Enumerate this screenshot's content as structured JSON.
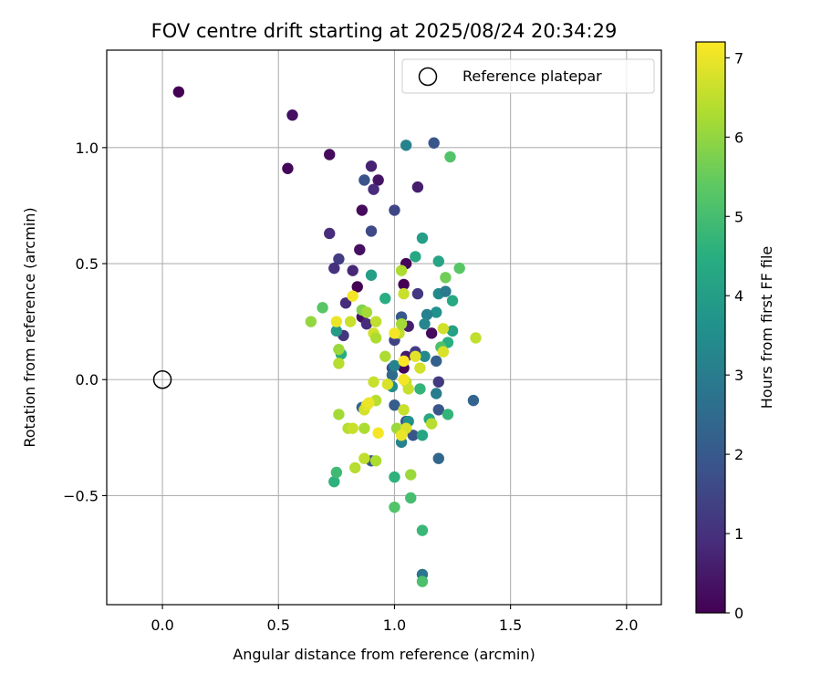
{
  "chart_data": {
    "type": "scatter",
    "title": "FOV centre drift starting at 2025/08/24 20:34:29",
    "xlabel": "Angular distance from reference (arcmin)",
    "ylabel": "Rotation from reference (arcmin)",
    "xlim": [
      -0.24,
      2.15
    ],
    "ylim": [
      -0.97,
      1.42
    ],
    "xticks": [
      0.0,
      0.5,
      1.0,
      1.5,
      2.0
    ],
    "xtick_labels": [
      "0.0",
      "0.5",
      "1.0",
      "1.5",
      "2.0"
    ],
    "yticks": [
      -0.5,
      0.0,
      0.5,
      1.0
    ],
    "ytick_labels": [
      "−0.5",
      "0.0",
      "0.5",
      "1.0"
    ],
    "grid": true,
    "legend": {
      "location": "top-right",
      "entries": [
        "Reference platepar"
      ]
    },
    "reference_point": {
      "x": 0.0,
      "y": 0.0
    },
    "colorbar": {
      "label": "Hours from first FF file",
      "colormap": "viridis",
      "range": [
        0,
        7.2
      ],
      "ticks": [
        0,
        1,
        2,
        3,
        4,
        5,
        6,
        7
      ],
      "tick_labels": [
        "0",
        "1",
        "2",
        "3",
        "4",
        "5",
        "6",
        "7"
      ]
    },
    "series": [
      {
        "points": [
          {
            "x": 0.07,
            "y": 1.24,
            "c": 0.0
          },
          {
            "x": 0.56,
            "y": 1.14,
            "c": 0.3
          },
          {
            "x": 0.54,
            "y": 0.91,
            "c": 0.1
          },
          {
            "x": 0.72,
            "y": 0.97,
            "c": 0.2
          },
          {
            "x": 0.9,
            "y": 0.92,
            "c": 0.7
          },
          {
            "x": 0.93,
            "y": 0.86,
            "c": 0.4
          },
          {
            "x": 0.87,
            "y": 0.86,
            "c": 1.8
          },
          {
            "x": 0.91,
            "y": 0.82,
            "c": 0.9
          },
          {
            "x": 1.1,
            "y": 0.83,
            "c": 0.6
          },
          {
            "x": 0.86,
            "y": 0.73,
            "c": 0.2
          },
          {
            "x": 1.0,
            "y": 0.73,
            "c": 1.5
          },
          {
            "x": 0.72,
            "y": 0.63,
            "c": 0.9
          },
          {
            "x": 0.9,
            "y": 0.64,
            "c": 1.6
          },
          {
            "x": 0.85,
            "y": 0.56,
            "c": 0.3
          },
          {
            "x": 0.76,
            "y": 0.52,
            "c": 1.3
          },
          {
            "x": 0.74,
            "y": 0.48,
            "c": 1.0
          },
          {
            "x": 0.82,
            "y": 0.47,
            "c": 0.8
          },
          {
            "x": 1.05,
            "y": 0.5,
            "c": 0.1
          },
          {
            "x": 0.84,
            "y": 0.4,
            "c": 0.0
          },
          {
            "x": 0.79,
            "y": 0.33,
            "c": 0.9
          },
          {
            "x": 0.86,
            "y": 0.27,
            "c": 0.3
          },
          {
            "x": 0.88,
            "y": 0.24,
            "c": 0.9
          },
          {
            "x": 0.78,
            "y": 0.19,
            "c": 1.1
          },
          {
            "x": 1.04,
            "y": 0.41,
            "c": 0.0
          },
          {
            "x": 1.1,
            "y": 0.37,
            "c": 1.2
          },
          {
            "x": 1.06,
            "y": 0.23,
            "c": 0.6
          },
          {
            "x": 1.03,
            "y": 0.27,
            "c": 2.0
          },
          {
            "x": 1.16,
            "y": 0.2,
            "c": 0.2
          },
          {
            "x": 1.0,
            "y": 0.17,
            "c": 1.4
          },
          {
            "x": 1.05,
            "y": 0.1,
            "c": 0.5
          },
          {
            "x": 1.09,
            "y": 0.12,
            "c": 1.3
          },
          {
            "x": 1.04,
            "y": 0.05,
            "c": 0.1
          },
          {
            "x": 0.99,
            "y": 0.05,
            "c": 1.7
          },
          {
            "x": 0.99,
            "y": 0.02,
            "c": 2.5
          },
          {
            "x": 1.19,
            "y": -0.01,
            "c": 1.2
          },
          {
            "x": 1.18,
            "y": 0.08,
            "c": 2.2
          },
          {
            "x": 1.34,
            "y": -0.09,
            "c": 2.3
          },
          {
            "x": 1.19,
            "y": -0.13,
            "c": 1.9
          },
          {
            "x": 1.0,
            "y": -0.11,
            "c": 2.1
          },
          {
            "x": 1.05,
            "y": -0.18,
            "c": 1.8
          },
          {
            "x": 1.08,
            "y": -0.24,
            "c": 1.9
          },
          {
            "x": 1.03,
            "y": -0.27,
            "c": 3.2
          },
          {
            "x": 0.86,
            "y": -0.12,
            "c": 2.3
          },
          {
            "x": 0.9,
            "y": -0.35,
            "c": 2.0
          },
          {
            "x": 1.12,
            "y": -0.84,
            "c": 2.8
          },
          {
            "x": 1.19,
            "y": -0.34,
            "c": 2.4
          },
          {
            "x": 1.05,
            "y": 1.01,
            "c": 3.2
          },
          {
            "x": 1.17,
            "y": 1.02,
            "c": 1.9
          },
          {
            "x": 1.24,
            "y": 0.96,
            "c": 5.2
          },
          {
            "x": 1.12,
            "y": 0.61,
            "c": 4.0
          },
          {
            "x": 1.09,
            "y": 0.53,
            "c": 4.3
          },
          {
            "x": 1.19,
            "y": 0.51,
            "c": 4.2
          },
          {
            "x": 1.28,
            "y": 0.48,
            "c": 5.3
          },
          {
            "x": 1.22,
            "y": 0.44,
            "c": 5.6
          },
          {
            "x": 0.9,
            "y": 0.45,
            "c": 4.0
          },
          {
            "x": 1.19,
            "y": 0.37,
            "c": 3.4
          },
          {
            "x": 1.22,
            "y": 0.38,
            "c": 2.9
          },
          {
            "x": 1.25,
            "y": 0.34,
            "c": 4.3
          },
          {
            "x": 1.18,
            "y": 0.29,
            "c": 3.6
          },
          {
            "x": 1.14,
            "y": 0.28,
            "c": 3.1
          },
          {
            "x": 1.13,
            "y": 0.24,
            "c": 3.3
          },
          {
            "x": 0.96,
            "y": 0.35,
            "c": 4.5
          },
          {
            "x": 0.69,
            "y": 0.31,
            "c": 5.3
          },
          {
            "x": 0.75,
            "y": 0.21,
            "c": 3.9
          },
          {
            "x": 0.77,
            "y": 0.11,
            "c": 4.4
          },
          {
            "x": 1.23,
            "y": 0.16,
            "c": 4.5
          },
          {
            "x": 1.25,
            "y": 0.21,
            "c": 4.1
          },
          {
            "x": 1.2,
            "y": 0.14,
            "c": 5.1
          },
          {
            "x": 1.13,
            "y": 0.1,
            "c": 3.4
          },
          {
            "x": 1.0,
            "y": 0.06,
            "c": 3.2
          },
          {
            "x": 0.99,
            "y": -0.03,
            "c": 3.5
          },
          {
            "x": 1.18,
            "y": -0.06,
            "c": 3.0
          },
          {
            "x": 1.11,
            "y": -0.04,
            "c": 4.7
          },
          {
            "x": 1.15,
            "y": -0.17,
            "c": 4.3
          },
          {
            "x": 1.23,
            "y": -0.15,
            "c": 4.7
          },
          {
            "x": 1.12,
            "y": -0.24,
            "c": 4.2
          },
          {
            "x": 1.06,
            "y": -0.18,
            "c": 3.6
          },
          {
            "x": 0.74,
            "y": -0.44,
            "c": 4.6
          },
          {
            "x": 0.75,
            "y": -0.4,
            "c": 4.9
          },
          {
            "x": 1.0,
            "y": -0.42,
            "c": 4.6
          },
          {
            "x": 1.0,
            "y": -0.55,
            "c": 5.2
          },
          {
            "x": 1.07,
            "y": -0.51,
            "c": 5.0
          },
          {
            "x": 1.12,
            "y": -0.65,
            "c": 4.8
          },
          {
            "x": 1.12,
            "y": -0.87,
            "c": 5.1
          },
          {
            "x": 0.64,
            "y": 0.25,
            "c": 6.0
          },
          {
            "x": 0.76,
            "y": 0.13,
            "c": 6.1
          },
          {
            "x": 0.76,
            "y": 0.07,
            "c": 6.4
          },
          {
            "x": 0.81,
            "y": 0.25,
            "c": 6.6
          },
          {
            "x": 0.86,
            "y": 0.3,
            "c": 5.8
          },
          {
            "x": 0.88,
            "y": 0.29,
            "c": 6.2
          },
          {
            "x": 0.92,
            "y": 0.25,
            "c": 6.5
          },
          {
            "x": 0.91,
            "y": 0.2,
            "c": 6.7
          },
          {
            "x": 0.92,
            "y": 0.18,
            "c": 6.3
          },
          {
            "x": 1.02,
            "y": 0.2,
            "c": 6.5
          },
          {
            "x": 1.03,
            "y": 0.24,
            "c": 6.2
          },
          {
            "x": 1.03,
            "y": 0.47,
            "c": 6.3
          },
          {
            "x": 1.04,
            "y": 0.37,
            "c": 6.6
          },
          {
            "x": 1.21,
            "y": 0.22,
            "c": 6.7
          },
          {
            "x": 1.35,
            "y": 0.18,
            "c": 6.5
          },
          {
            "x": 1.21,
            "y": 0.12,
            "c": 6.8
          },
          {
            "x": 1.09,
            "y": 0.1,
            "c": 6.9
          },
          {
            "x": 1.11,
            "y": 0.05,
            "c": 6.7
          },
          {
            "x": 0.96,
            "y": 0.1,
            "c": 6.3
          },
          {
            "x": 0.91,
            "y": -0.01,
            "c": 6.6
          },
          {
            "x": 0.97,
            "y": -0.02,
            "c": 6.8
          },
          {
            "x": 1.05,
            "y": -0.01,
            "c": 6.5
          },
          {
            "x": 1.06,
            "y": -0.04,
            "c": 6.6
          },
          {
            "x": 0.76,
            "y": -0.15,
            "c": 6.2
          },
          {
            "x": 0.87,
            "y": -0.13,
            "c": 6.7
          },
          {
            "x": 0.88,
            "y": -0.11,
            "c": 6.9
          },
          {
            "x": 0.92,
            "y": -0.09,
            "c": 6.4
          },
          {
            "x": 1.04,
            "y": -0.13,
            "c": 6.6
          },
          {
            "x": 0.8,
            "y": -0.21,
            "c": 6.4
          },
          {
            "x": 0.82,
            "y": -0.21,
            "c": 6.6
          },
          {
            "x": 0.87,
            "y": -0.21,
            "c": 6.3
          },
          {
            "x": 1.01,
            "y": -0.21,
            "c": 6.1
          },
          {
            "x": 1.05,
            "y": -0.21,
            "c": 6.8
          },
          {
            "x": 1.16,
            "y": -0.19,
            "c": 6.4
          },
          {
            "x": 1.03,
            "y": -0.24,
            "c": 7.0
          },
          {
            "x": 0.93,
            "y": -0.23,
            "c": 7.1
          },
          {
            "x": 0.87,
            "y": -0.34,
            "c": 6.5
          },
          {
            "x": 0.92,
            "y": -0.35,
            "c": 6.3
          },
          {
            "x": 0.83,
            "y": -0.38,
            "c": 6.4
          },
          {
            "x": 1.07,
            "y": -0.41,
            "c": 6.1
          },
          {
            "x": 0.82,
            "y": 0.36,
            "c": 7.1
          },
          {
            "x": 0.75,
            "y": 0.25,
            "c": 7.0
          },
          {
            "x": 1.0,
            "y": 0.2,
            "c": 7.1
          },
          {
            "x": 1.04,
            "y": 0.08,
            "c": 7.2
          },
          {
            "x": 1.04,
            "y": 0.0,
            "c": 7.1
          },
          {
            "x": 0.89,
            "y": -0.1,
            "c": 7.0
          }
        ]
      }
    ]
  }
}
